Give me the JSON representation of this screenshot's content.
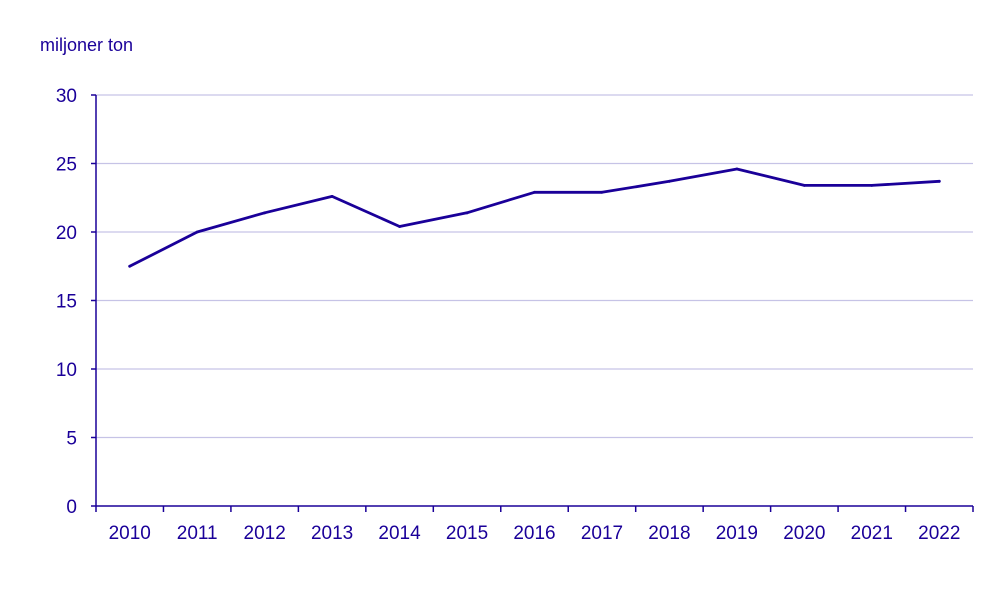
{
  "chart_data": {
    "type": "line",
    "title": "",
    "xlabel": "",
    "ylabel": "miljoner ton",
    "x": [
      "2010",
      "2011",
      "2012",
      "2013",
      "2014",
      "2015",
      "2016",
      "2017",
      "2018",
      "2019",
      "2020",
      "2021",
      "2022"
    ],
    "series": [
      {
        "values": [
          17.5,
          20.0,
          21.4,
          22.6,
          20.4,
          21.4,
          22.9,
          22.9,
          23.7,
          24.6,
          23.4,
          23.4,
          23.7
        ]
      }
    ],
    "ylim": [
      0,
      30
    ],
    "yticks": [
      "0",
      "5",
      "10",
      "15",
      "20",
      "25",
      "30"
    ],
    "grid": true,
    "legend": "none",
    "colors": {
      "line": "#1a0099",
      "text": "#1a0099",
      "grid": "#c6c3e6",
      "axis": "#1a0099"
    }
  }
}
